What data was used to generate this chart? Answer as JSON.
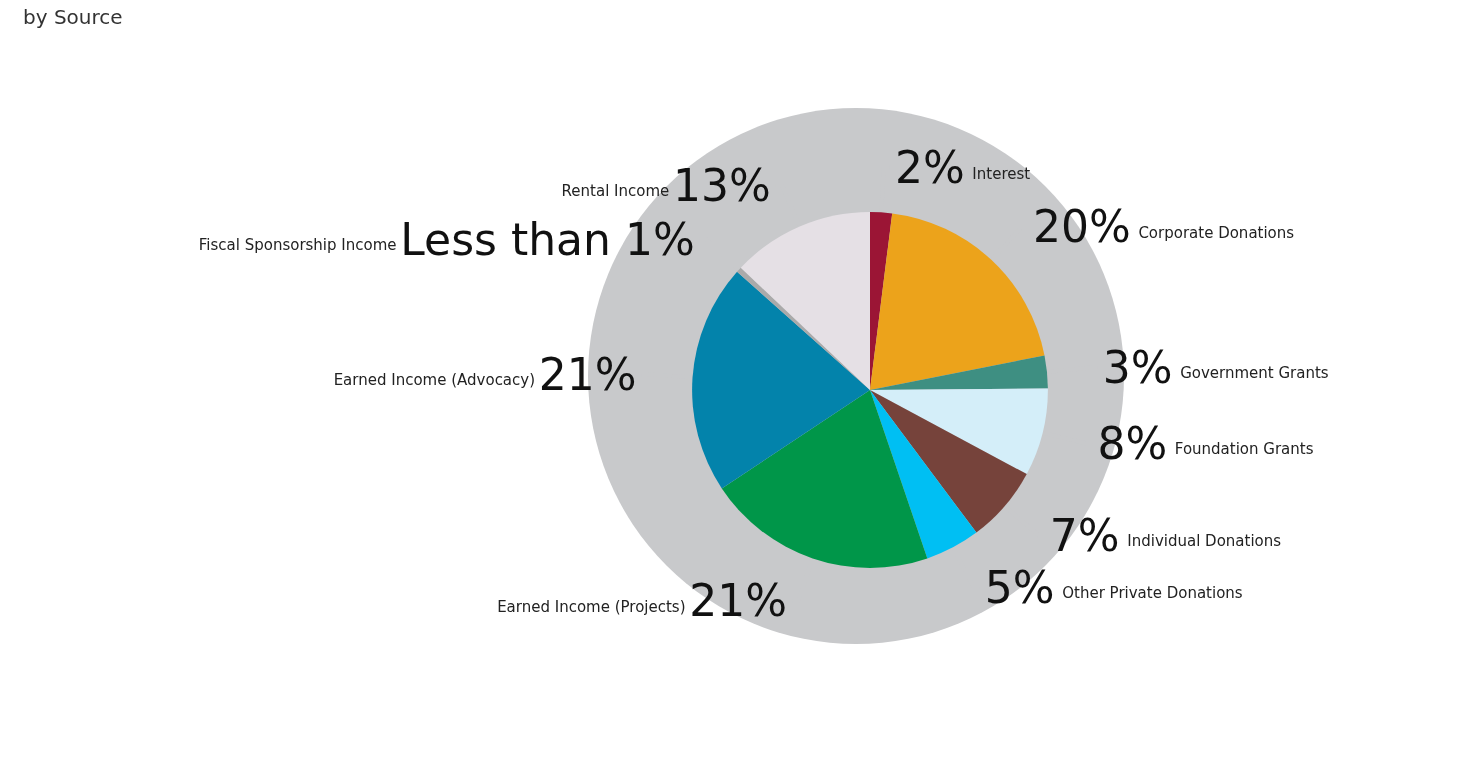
{
  "chart_data": {
    "type": "pie",
    "title": "by Source",
    "categories": [
      "Interest",
      "Corporate Donations",
      "Government Grants",
      "Foundation Grants",
      "Individual Donations",
      "Other Private Donations",
      "Earned Income (Projects)",
      "Earned Income (Advocacy)",
      "Fiscal Sponsorship Income",
      "Rental Income"
    ],
    "values": [
      2,
      20,
      3,
      8,
      7,
      5,
      21,
      21,
      0.5,
      13
    ],
    "value_labels": [
      "2%",
      "20%",
      "3%",
      "8%",
      "7%",
      "5%",
      "21%",
      "21%",
      "Less than 1%",
      "13%"
    ],
    "colors": [
      "#9b1535",
      "#eca31b",
      "#3e8f82",
      "#d4eef9",
      "#76433b",
      "#00bff3",
      "#009649",
      "#0383ab",
      "#aaaaaa",
      "#e5e0e5"
    ],
    "legend": false
  }
}
